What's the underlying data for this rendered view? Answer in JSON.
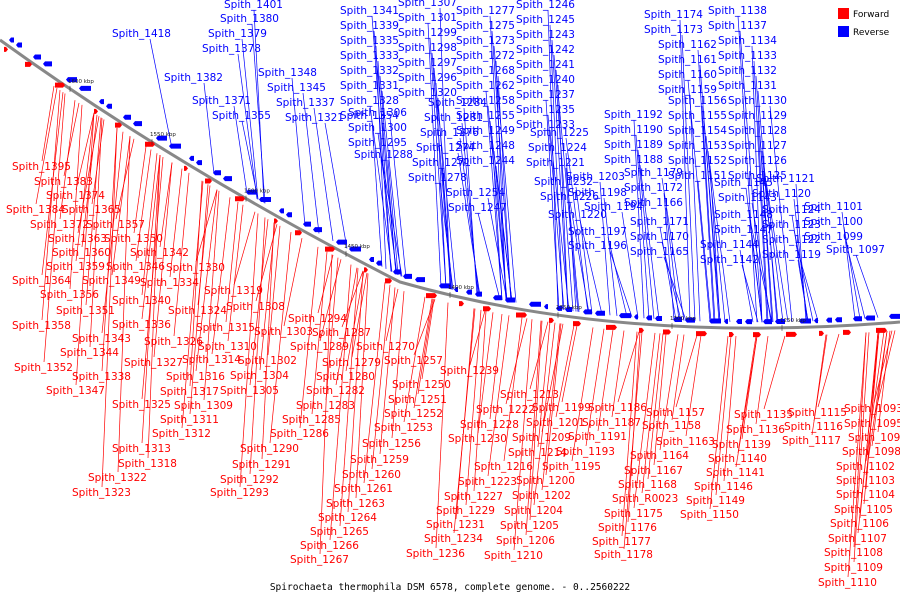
{
  "caption": "Spirochaeta thermophila DSM 6578, complete genome. - 0..2560222",
  "legend": [
    {
      "label": "Forward",
      "color": "#ff0000"
    },
    {
      "label": "Reverse",
      "color": "#0000ff"
    }
  ],
  "colors": {
    "forward": "#ff0000",
    "reverse": "#0000ff",
    "backbone": "#888888"
  },
  "scale_ticks": [
    "1600 kbp",
    "1550 kbp",
    "1500 kbp",
    "1450 kbp",
    "1400 kbp",
    "1350 kbp",
    "1300 kbp",
    "1250 kbp"
  ],
  "labels_top": [
    "Spith_1401",
    "Spith_1380",
    "Spith_1379",
    "Spith_1378",
    "Spith_1418",
    "Spith_1382",
    "Spith_1371",
    "Spith_1355",
    "Spith_1341",
    "Spith_1339",
    "Spith_1335",
    "Spith_1333",
    "Spith_1332",
    "Spith_1331",
    "Spith_1328",
    "Spith_1354",
    "Spith_1348",
    "Spith_1345",
    "Spith_1337",
    "Spith_1321",
    "Spith_1307",
    "Spith_1301",
    "Spith_1299",
    "Spith_1298",
    "Spith_1297",
    "Spith_1296",
    "Spith_1320",
    "Spith_1306",
    "Spith_1300",
    "Spith_1295",
    "Spith_1288",
    "Spith_1284",
    "Spith_1281",
    "Spith_1276",
    "Spith_1274",
    "Spith_1271",
    "Spith_1278",
    "Spith_1277",
    "Spith_1275",
    "Spith_1273",
    "Spith_1272",
    "Spith_1268",
    "Spith_1262",
    "Spith_1258",
    "Spith_1255",
    "Spith_1249",
    "Spith_1248",
    "Spith_1244",
    "Spith_1254",
    "Spith_1247",
    "Spith_1246",
    "Spith_1245",
    "Spith_1243",
    "Spith_1242",
    "Spith_1241",
    "Spith_1240",
    "Spith_1237",
    "Spith_1235",
    "Spith_1233",
    "Spith_1225",
    "Spith_1224",
    "Spith_1221",
    "Spith_1232",
    "Spith_1226",
    "Spith_1220",
    "Spith_1203",
    "Spith_1198",
    "Spith_1194",
    "Spith_1197",
    "Spith_1196",
    "Spith_1192",
    "Spith_1190",
    "Spith_1189",
    "Spith_1188",
    "Spith_1179",
    "Spith_1172",
    "Spith_1166",
    "Spith_1171",
    "Spith_1170",
    "Spith_1165",
    "Spith_1174",
    "Spith_1173",
    "Spith_1162",
    "Spith_1161",
    "Spith_1160",
    "Spith_1159",
    "Spith_1156",
    "Spith_1155",
    "Spith_1154",
    "Spith_1153",
    "Spith_1152",
    "Spith_1151",
    "Spith_1145",
    "Spith_1143",
    "Spith_1148",
    "Spith_1147",
    "Spith_1144",
    "Spith_1142",
    "Spith_1138",
    "Spith_1137",
    "Spith_1134",
    "Spith_1133",
    "Spith_1132",
    "Spith_1131",
    "Spith_1130",
    "Spith_1129",
    "Spith_1128",
    "Spith_1127",
    "Spith_1126",
    "Spith_1125",
    "Spith_1121",
    "Spith_1120",
    "Spith_1124",
    "Spith_1123",
    "Spith_1122",
    "Spith_1119",
    "Spith_1101",
    "Spith_1100",
    "Spith_1099",
    "Spith_1097"
  ],
  "labels_bottom": [
    "Spith_1395",
    "Spith_1383",
    "Spith_1374",
    "Spith_1384",
    "Spith_1365",
    "Spith_1372",
    "Spith_1357",
    "Spith_1363",
    "Spith_1350",
    "Spith_1360",
    "Spith_1359",
    "Spith_1364",
    "Spith_1356",
    "Spith_1351",
    "Spith_1358",
    "Spith_1352",
    "Spith_1342",
    "Spith_1346",
    "Spith_1349",
    "Spith_1330",
    "Spith_1334",
    "Spith_1340",
    "Spith_1336",
    "Spith_1343",
    "Spith_1344",
    "Spith_1338",
    "Spith_1347",
    "Spith_1319",
    "Spith_1324",
    "Spith_1326",
    "Spith_1327",
    "Spith_1325",
    "Spith_1322",
    "Spith_1323",
    "Spith_1313",
    "Spith_1308",
    "Spith_1315",
    "Spith_1310",
    "Spith_1314",
    "Spith_1316",
    "Spith_1317",
    "Spith_1309",
    "Spith_1311",
    "Spith_1312",
    "Spith_1318",
    "Spith_1294",
    "Spith_1303",
    "Spith_1289",
    "Spith_1302",
    "Spith_1304",
    "Spith_1305",
    "Spith_1290",
    "Spith_1291",
    "Spith_1292",
    "Spith_1293",
    "Spith_1287",
    "Spith_1270",
    "Spith_1279",
    "Spith_1280",
    "Spith_1282",
    "Spith_1283",
    "Spith_1285",
    "Spith_1286",
    "Spith_1257",
    "Spith_1250",
    "Spith_1251",
    "Spith_1252",
    "Spith_1253",
    "Spith_1256",
    "Spith_1259",
    "Spith_1260",
    "Spith_1261",
    "Spith_1263",
    "Spith_1264",
    "Spith_1265",
    "Spith_1266",
    "Spith_1267",
    "Spith_1239",
    "Spith_1213",
    "Spith_1222",
    "Spith_1228",
    "Spith_1230",
    "Spith_1216",
    "Spith_1223",
    "Spith_1227",
    "Spith_1229",
    "Spith_1231",
    "Spith_1234",
    "Spith_1236",
    "Spith_1199",
    "Spith_1201",
    "Spith_1209",
    "Spith_1214",
    "Spith_1200",
    "Spith_1202",
    "Spith_1204",
    "Spith_1205",
    "Spith_1206",
    "Spith_1210",
    "Spith_1186",
    "Spith_1187",
    "Spith_1191",
    "Spith_1193",
    "Spith_1195",
    "Spith_1167",
    "Spith_1168",
    "Spith_R0023",
    "Spith_1175",
    "Spith_1176",
    "Spith_1177",
    "Spith_1178",
    "Spith_1157",
    "Spith_1158",
    "Spith_1163",
    "Spith_1164",
    "Spith_1135",
    "Spith_1136",
    "Spith_1139",
    "Spith_1140",
    "Spith_1141",
    "Spith_1146",
    "Spith_1149",
    "Spith_1150",
    "Spith_1115",
    "Spith_1116",
    "Spith_1117",
    "Spith_1093",
    "Spith_1095",
    "Spith_1096",
    "Spith_1098",
    "Spith_1102",
    "Spith_1103",
    "Spith_1104",
    "Spith_1105",
    "Spith_1106",
    "Spith_1107",
    "Spith_1108",
    "Spith_1109",
    "Spith_1110"
  ]
}
